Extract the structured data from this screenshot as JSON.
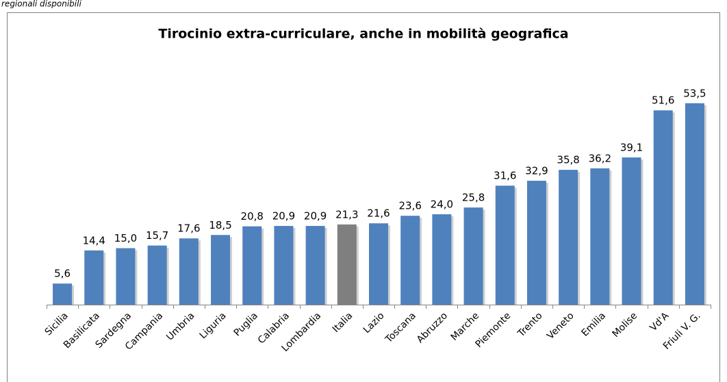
{
  "caption": "regionali disponibili",
  "chart_data": {
    "type": "bar",
    "title": "Tirocinio extra-curriculare, anche in mobilità geografica",
    "categories": [
      "Sicilia",
      "Basilicata",
      "Sardegna",
      "Campania",
      "Umbria",
      "Liguria",
      "Puglia",
      "Calabria",
      "Lombardia",
      "Italia",
      "Lazio",
      "Toscana",
      "Abruzzo",
      "Marche",
      "Piemonte",
      "Trento",
      "Veneto",
      "Emilia",
      "Molise",
      "Vd'A",
      "Friuli V. G."
    ],
    "values": [
      5.6,
      14.4,
      15.0,
      15.7,
      17.6,
      18.5,
      20.8,
      20.9,
      20.9,
      21.3,
      21.6,
      23.6,
      24.0,
      25.8,
      31.6,
      32.9,
      35.8,
      36.2,
      39.1,
      51.6,
      53.5
    ],
    "value_labels": [
      "5,6",
      "14,4",
      "15,0",
      "15,7",
      "17,6",
      "18,5",
      "20,8",
      "20,9",
      "20,9",
      "21,3",
      "21,6",
      "23,6",
      "24,0",
      "25,8",
      "31,6",
      "32,9",
      "35,8",
      "36,2",
      "39,1",
      "51,6",
      "53,5"
    ],
    "colors": [
      "#4f81bd",
      "#4f81bd",
      "#4f81bd",
      "#4f81bd",
      "#4f81bd",
      "#4f81bd",
      "#4f81bd",
      "#4f81bd",
      "#4f81bd",
      "#7f7f7f",
      "#4f81bd",
      "#4f81bd",
      "#4f81bd",
      "#4f81bd",
      "#4f81bd",
      "#4f81bd",
      "#4f81bd",
      "#4f81bd",
      "#4f81bd",
      "#4f81bd",
      "#4f81bd"
    ],
    "ylim": [
      0,
      60
    ]
  }
}
